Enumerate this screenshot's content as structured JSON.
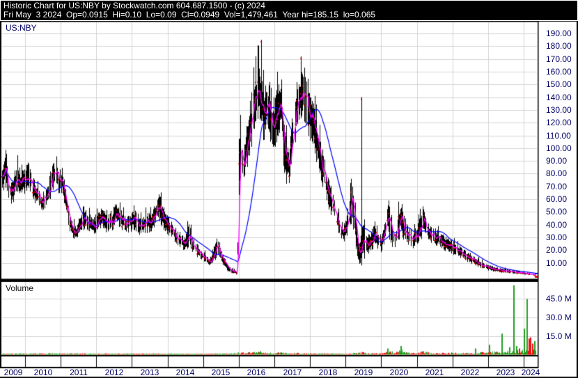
{
  "title_bar": {
    "line1": "Historic Chart for US:NBY by Stockwatch.com 604.687.1500 - (c) 2024",
    "line2": "Fri May  3 2024  Op=0.0915  Hi=0.10  Lo=0.09  Cl=0.0949  Vol=1,479,461  Year hi=185.15  lo=0.065"
  },
  "price_panel": {
    "symbol_label": "US:NBY"
  },
  "volume_panel": {
    "label": "Volume"
  },
  "axes": {
    "price_ticks": [
      "190.00",
      "180.00",
      "170.00",
      "160.00",
      "150.00",
      "140.00",
      "130.00",
      "120.00",
      "110.00",
      "100.00",
      "90.00",
      "80.00",
      "70.00",
      "60.00",
      "50.00",
      "40.00",
      "30.00",
      "20.00",
      "10.00"
    ],
    "volume_ticks": [
      "45.0 M",
      "30.0 M",
      "15.0 M"
    ],
    "years": [
      "2009",
      "2010",
      "2011",
      "2012",
      "2013",
      "2014",
      "2015",
      "2016",
      "2017",
      "2018",
      "2019",
      "2020",
      "2021",
      "2022",
      "2023",
      "2024"
    ]
  },
  "colors": {
    "background": "#000000",
    "panel": "#ffffff",
    "grid": "#d4d4d4",
    "bar": "#000000",
    "close_dot": "#f00000",
    "ma_short": "#ff00ff",
    "ma_long": "#0000ff",
    "volume_up": "#22a022",
    "volume_down": "#ee1111",
    "label_text": "#000066",
    "title_text": "#ffffff"
  },
  "chart_data": {
    "type": "ohlc_bar_with_volume",
    "title": "Historic Chart for US:NBY",
    "quote": {
      "date": "Fri May 3 2024",
      "open": 0.0915,
      "high": 0.1,
      "low": 0.09,
      "close": 0.0949,
      "volume": 1479461,
      "year_high": 185.15,
      "year_low": 0.065
    },
    "x_axis": {
      "start": 2009.35,
      "end": 2024.345,
      "tick_years": [
        2009,
        2010,
        2011,
        2012,
        2013,
        2014,
        2015,
        2016,
        2017,
        2018,
        2019,
        2020,
        2021,
        2022,
        2023,
        2024
      ]
    },
    "price_axis": {
      "min": 0,
      "max": 195,
      "tick_step": 10,
      "ticks": [
        10,
        20,
        30,
        40,
        50,
        60,
        70,
        80,
        90,
        100,
        110,
        120,
        130,
        140,
        150,
        160,
        170,
        180,
        190
      ]
    },
    "volume_axis": {
      "unit": "millions",
      "ticks": [
        15,
        30,
        45
      ],
      "max": 60
    },
    "price_envelope_keyframes": [
      [
        2009.35,
        88,
        63
      ],
      [
        2009.45,
        95,
        70
      ],
      [
        2009.55,
        80,
        58
      ],
      [
        2009.65,
        75,
        55
      ],
      [
        2009.78,
        90,
        65
      ],
      [
        2009.9,
        82,
        60
      ],
      [
        2010.0,
        85,
        64
      ],
      [
        2010.1,
        90,
        68
      ],
      [
        2010.25,
        78,
        58
      ],
      [
        2010.4,
        68,
        52
      ],
      [
        2010.5,
        62,
        50
      ],
      [
        2010.62,
        70,
        54
      ],
      [
        2010.75,
        88,
        62
      ],
      [
        2010.85,
        92,
        70
      ],
      [
        2010.95,
        84,
        63
      ],
      [
        2011.05,
        86,
        62
      ],
      [
        2011.15,
        70,
        46
      ],
      [
        2011.25,
        52,
        34
      ],
      [
        2011.35,
        42,
        28
      ],
      [
        2011.45,
        40,
        27
      ],
      [
        2011.55,
        48,
        33
      ],
      [
        2011.68,
        52,
        36
      ],
      [
        2011.8,
        50,
        34
      ],
      [
        2011.92,
        46,
        31
      ],
      [
        2012.05,
        50,
        34
      ],
      [
        2012.18,
        55,
        38
      ],
      [
        2012.3,
        48,
        32
      ],
      [
        2012.45,
        52,
        35
      ],
      [
        2012.56,
        60,
        40
      ],
      [
        2012.7,
        52,
        36
      ],
      [
        2012.85,
        48,
        33
      ],
      [
        2012.95,
        50,
        34
      ],
      [
        2013.1,
        52,
        35
      ],
      [
        2013.25,
        46,
        31
      ],
      [
        2013.4,
        50,
        33
      ],
      [
        2013.55,
        50,
        33
      ],
      [
        2013.67,
        58,
        40
      ],
      [
        2013.74,
        69,
        45
      ],
      [
        2013.85,
        58,
        38
      ],
      [
        2013.95,
        50,
        33
      ],
      [
        2014.1,
        44,
        29
      ],
      [
        2014.25,
        38,
        25
      ],
      [
        2014.4,
        33,
        21
      ],
      [
        2014.5,
        30,
        18
      ],
      [
        2014.6,
        43,
        20
      ],
      [
        2014.72,
        30,
        17
      ],
      [
        2014.85,
        25,
        14
      ],
      [
        2014.95,
        21,
        12
      ],
      [
        2015.05,
        18,
        10
      ],
      [
        2015.2,
        14,
        7
      ],
      [
        2015.4,
        33,
        12
      ],
      [
        2015.55,
        18,
        8
      ],
      [
        2015.7,
        9,
        3
      ],
      [
        2015.85,
        5,
        1.2
      ],
      [
        2015.96,
        3.5,
        0.8
      ],
      [
        2016.02,
        110,
        60
      ],
      [
        2016.08,
        120,
        72
      ],
      [
        2016.14,
        100,
        63
      ],
      [
        2016.25,
        125,
        85
      ],
      [
        2016.4,
        150,
        105
      ],
      [
        2016.55,
        170,
        115
      ],
      [
        2016.63,
        160,
        120
      ],
      [
        2016.7,
        150,
        100
      ],
      [
        2016.78,
        160,
        115
      ],
      [
        2016.88,
        155,
        105
      ],
      [
        2016.97,
        140,
        95
      ],
      [
        2017.1,
        150,
        100
      ],
      [
        2017.2,
        160,
        110
      ],
      [
        2017.3,
        115,
        72
      ],
      [
        2017.42,
        100,
        72
      ],
      [
        2017.5,
        130,
        90
      ],
      [
        2017.6,
        150,
        105
      ],
      [
        2017.75,
        160,
        120
      ],
      [
        2017.9,
        165,
        118
      ],
      [
        2018.0,
        150,
        105
      ],
      [
        2018.1,
        140,
        100
      ],
      [
        2018.25,
        115,
        80
      ],
      [
        2018.4,
        95,
        65
      ],
      [
        2018.55,
        75,
        50
      ],
      [
        2018.7,
        60,
        40
      ],
      [
        2018.85,
        45,
        30
      ],
      [
        2018.95,
        40,
        26
      ],
      [
        2019.0,
        45,
        28
      ],
      [
        2019.1,
        60,
        35
      ],
      [
        2019.2,
        75,
        40
      ],
      [
        2019.3,
        45,
        20
      ],
      [
        2019.38,
        25,
        8
      ],
      [
        2019.45,
        40,
        10
      ],
      [
        2019.52,
        40,
        12
      ],
      [
        2019.6,
        30,
        15
      ],
      [
        2019.7,
        35,
        18
      ],
      [
        2019.8,
        40,
        22
      ],
      [
        2019.9,
        35,
        20
      ],
      [
        2020.0,
        32,
        18
      ],
      [
        2020.1,
        45,
        24
      ],
      [
        2020.19,
        66,
        32
      ],
      [
        2020.3,
        42,
        22
      ],
      [
        2020.42,
        38,
        20
      ],
      [
        2020.55,
        64,
        30
      ],
      [
        2020.65,
        48,
        26
      ],
      [
        2020.75,
        40,
        24
      ],
      [
        2020.88,
        36,
        21
      ],
      [
        2021.0,
        38,
        22
      ],
      [
        2021.1,
        48,
        26
      ],
      [
        2021.17,
        58,
        30
      ],
      [
        2021.28,
        44,
        27
      ],
      [
        2021.4,
        40,
        25
      ],
      [
        2021.55,
        37,
        23
      ],
      [
        2021.7,
        34,
        21
      ],
      [
        2021.85,
        31,
        18
      ],
      [
        2022.0,
        28,
        16
      ],
      [
        2022.2,
        24,
        14
      ],
      [
        2022.4,
        20,
        11
      ],
      [
        2022.6,
        16,
        8
      ],
      [
        2022.8,
        12,
        6
      ],
      [
        2022.95,
        10,
        4.5
      ],
      [
        2023.1,
        8,
        3
      ],
      [
        2023.3,
        6.5,
        2.5
      ],
      [
        2023.5,
        5.5,
        2
      ],
      [
        2023.7,
        4.5,
        1.5
      ],
      [
        2023.9,
        3.5,
        1.2
      ],
      [
        2024.05,
        2.5,
        0.8
      ],
      [
        2024.2,
        1.8,
        0.4
      ],
      [
        2024.34,
        1.2,
        0.1
      ]
    ],
    "price_spikes": [
      [
        2016.63,
        185,
        125
      ],
      [
        2017.75,
        172,
        128
      ],
      [
        2019.45,
        140,
        8
      ]
    ],
    "volume_keyframes": [
      [
        2009.35,
        0.6
      ],
      [
        2010,
        0.7
      ],
      [
        2011,
        0.8
      ],
      [
        2012,
        0.6
      ],
      [
        2013,
        0.7
      ],
      [
        2014,
        0.6
      ],
      [
        2015,
        0.5
      ],
      [
        2015.9,
        0.8
      ],
      [
        2016,
        1.2
      ],
      [
        2016.63,
        1.8
      ],
      [
        2017,
        1.2
      ],
      [
        2017.5,
        1.0
      ],
      [
        2018,
        0.8
      ],
      [
        2019,
        0.7
      ],
      [
        2019.45,
        1.5
      ],
      [
        2019.6,
        0.8
      ],
      [
        2020,
        0.9
      ],
      [
        2020.2,
        2.5
      ],
      [
        2020.4,
        1.2
      ],
      [
        2020.55,
        3.0
      ],
      [
        2020.7,
        1.2
      ],
      [
        2021,
        1.0
      ],
      [
        2021.17,
        2.0
      ],
      [
        2021.5,
        0.8
      ],
      [
        2022,
        1.2
      ],
      [
        2022.5,
        1.0
      ],
      [
        2022.8,
        1.5
      ],
      [
        2023,
        1.5
      ],
      [
        2023.5,
        2.0
      ],
      [
        2023.9,
        2.5
      ],
      [
        2024.1,
        3.0
      ],
      [
        2024.34,
        2.5
      ]
    ],
    "volume_spikes": [
      [
        2020.19,
        5,
        "up"
      ],
      [
        2020.55,
        7,
        "up"
      ],
      [
        2022.65,
        5,
        "up"
      ],
      [
        2023.05,
        8,
        "up"
      ],
      [
        2023.4,
        17,
        "up"
      ],
      [
        2023.6,
        6,
        "up"
      ],
      [
        2023.72,
        56,
        "up"
      ],
      [
        2023.8,
        7,
        "up"
      ],
      [
        2023.88,
        5,
        "down"
      ],
      [
        2024.03,
        21,
        "up"
      ],
      [
        2024.1,
        45,
        "up"
      ],
      [
        2024.15,
        13,
        "down"
      ],
      [
        2024.2,
        14,
        "down"
      ],
      [
        2024.26,
        9,
        "down"
      ],
      [
        2024.31,
        11,
        "up"
      ]
    ],
    "moving_averages": {
      "short_color_role": "ma_short",
      "long_color_role": "ma_long",
      "short_window_columns": 4,
      "long_window_columns": 34
    }
  }
}
